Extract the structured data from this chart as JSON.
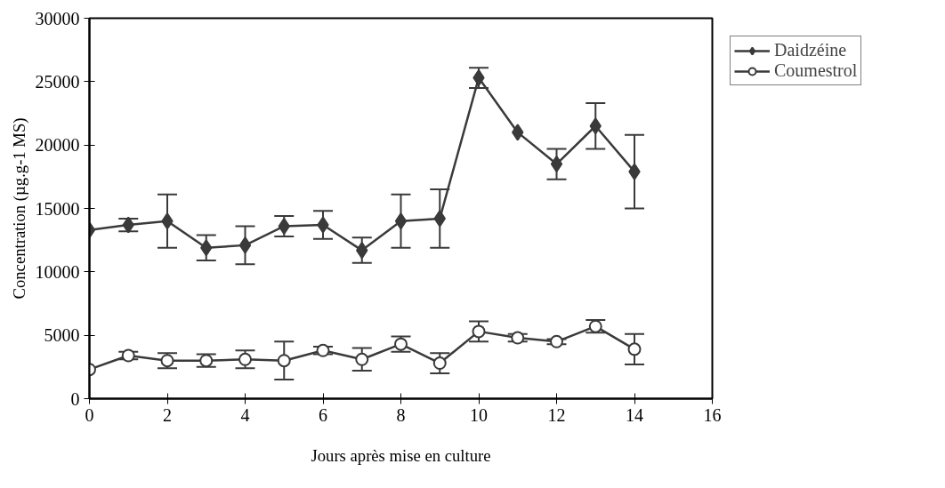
{
  "chart_data": {
    "type": "line",
    "xlabel": "Jours après mise en culture",
    "ylabel": "Concentration (µg.g-1 MS)",
    "x": [
      0,
      1,
      2,
      3,
      4,
      5,
      6,
      7,
      8,
      9,
      10,
      11,
      12,
      13,
      14
    ],
    "series": [
      {
        "name": "Daidzéine",
        "color": "#3a3a3a",
        "marker": "diamond",
        "values": [
          13300,
          13700,
          14000,
          11900,
          12100,
          13600,
          13700,
          11700,
          14000,
          14200,
          25300,
          21000,
          18500,
          21500,
          17900
        ],
        "errors": [
          null,
          500,
          2100,
          1000,
          1500,
          800,
          1100,
          1000,
          2100,
          2300,
          800,
          null,
          1200,
          1800,
          2900
        ]
      },
      {
        "name": "Coumestrol",
        "color": "#3a3a3a",
        "marker": "circle",
        "values": [
          2300,
          3400,
          3000,
          3000,
          3100,
          3000,
          3800,
          3100,
          4300,
          2800,
          5300,
          4800,
          4500,
          5700,
          3900
        ],
        "errors": [
          null,
          300,
          600,
          500,
          700,
          1500,
          300,
          900,
          600,
          800,
          800,
          300,
          200,
          500,
          1200
        ]
      }
    ],
    "xlim": [
      0,
      16
    ],
    "xticks": [
      0,
      2,
      4,
      6,
      8,
      10,
      12,
      14,
      16
    ],
    "ylim": [
      0,
      30000
    ],
    "yticks": [
      0,
      5000,
      10000,
      15000,
      20000,
      25000,
      30000
    ],
    "grid": false,
    "legend": "top right",
    "line_style": "solid"
  }
}
